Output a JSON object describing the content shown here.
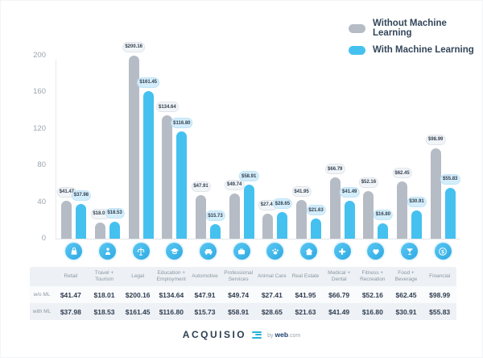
{
  "legend": {
    "items": [
      {
        "label": "Without Machine Learning",
        "color": "#b6bcc5"
      },
      {
        "label": "With Machine Learning",
        "color": "#45c1f0"
      }
    ]
  },
  "colors": {
    "bar_without": "#b6bcc5",
    "bar_with": "#45c1f0",
    "icon_circle": "#3bb4e8",
    "table_background": "#edf1f5",
    "value_text": "#2e3d50",
    "axis_label": "#9aa4ae"
  },
  "chart_data": {
    "type": "bar",
    "title": "",
    "categories": [
      "Retail",
      "Travel + Tourism",
      "Legal",
      "Education + Employment",
      "Automotive",
      "Professional Services",
      "Animal Care",
      "Real Estate",
      "Medical + Dental",
      "Fitness + Recreation",
      "Food + Beverage",
      "Financial"
    ],
    "series": [
      {
        "name": "Without Machine Learning",
        "values": [
          41.47,
          18.01,
          200.16,
          134.64,
          47.91,
          49.74,
          27.41,
          41.95,
          66.79,
          52.16,
          62.45,
          98.99
        ]
      },
      {
        "name": "With Machine Learning",
        "values": [
          37.98,
          18.53,
          161.45,
          116.8,
          15.73,
          58.91,
          28.65,
          21.63,
          41.49,
          16.8,
          30.91,
          55.83
        ]
      }
    ],
    "value_label_prefix": "$",
    "yticks": [
      0,
      40,
      80,
      120,
      160,
      200
    ],
    "ylim": [
      0,
      200
    ],
    "grid": false,
    "legend_position": "top-right",
    "icons": [
      "retail-icon",
      "travel-icon",
      "legal-icon",
      "education-icon",
      "automotive-icon",
      "professional-services-icon",
      "animal-care-icon",
      "real-estate-icon",
      "medical-icon",
      "fitness-icon",
      "food-icon",
      "financial-icon"
    ]
  },
  "table": {
    "row_labels": [
      "w/o ML",
      "with ML"
    ],
    "columns": [
      {
        "label": "Retail",
        "wo": "$41.47",
        "with": "$37.98"
      },
      {
        "label": "Travel + Tourism",
        "wo": "$18.01",
        "with": "$18.53"
      },
      {
        "label": "Legal",
        "wo": "$200.16",
        "with": "$161.45"
      },
      {
        "label": "Education + Employment",
        "wo": "$134.64",
        "with": "$116.80"
      },
      {
        "label": "Automotive",
        "wo": "$47.91",
        "with": "$15.73"
      },
      {
        "label": "Professional Services",
        "wo": "$49.74",
        "with": "$58.91"
      },
      {
        "label": "Animal Care",
        "wo": "$27.41",
        "with": "$28.65"
      },
      {
        "label": "Real Estate",
        "wo": "$41.95",
        "with": "$21.63"
      },
      {
        "label": "Medical + Dental",
        "wo": "$66.79",
        "with": "$41.49"
      },
      {
        "label": "Fitness + Recreation",
        "wo": "$52.16",
        "with": "$16.80"
      },
      {
        "label": "Food + Beverage",
        "wo": "$62.45",
        "with": "$30.91"
      },
      {
        "label": "Financial",
        "wo": "$98.99",
        "with": "$55.83"
      }
    ]
  },
  "footer": {
    "brand": "ACQUISIO",
    "byline_prefix": "by",
    "byline_brand": "web",
    "byline_suffix": ".com"
  }
}
